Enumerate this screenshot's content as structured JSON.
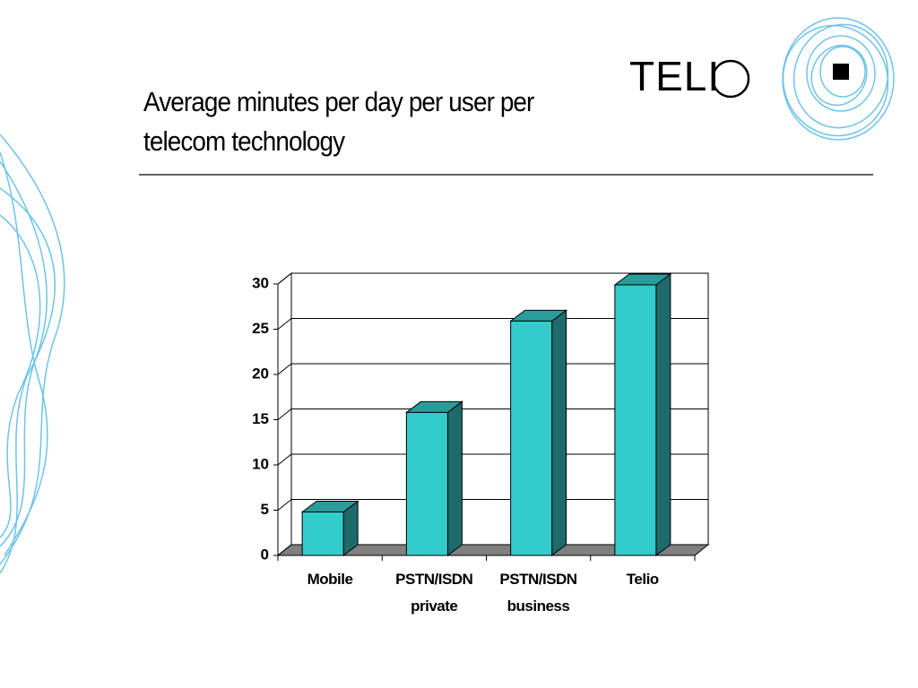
{
  "logo": "TELI",
  "chart_data": {
    "type": "bar3d",
    "title": "Average minutes per day per user per telecom technology",
    "categories": [
      "Mobile",
      "PSTN/ISDN private",
      "PSTN/ISDN business",
      "Telio"
    ],
    "values": [
      4.8,
      15.8,
      25.9,
      29.9
    ],
    "color": "#33cccc",
    "ylim": [
      0,
      30
    ],
    "yticks": [
      0,
      5,
      10,
      15,
      20,
      25,
      30
    ],
    "grid": true
  }
}
